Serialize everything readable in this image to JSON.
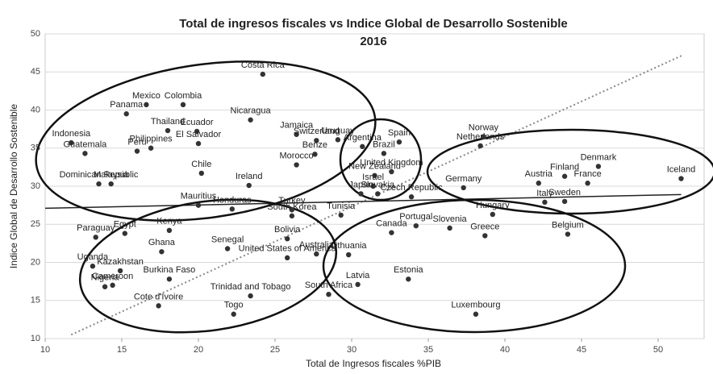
{
  "chart_data": {
    "type": "scatter",
    "title": "Total de ingresos fiscales vs Indice Global de Desarrollo Sostenible",
    "subtitle": "2016",
    "x_label": "Total de Ingresos fiscales %PIB",
    "y_label": "Indice Global de Desarrollo Sostenible",
    "xlim": [
      10,
      53
    ],
    "xticks": [
      10,
      15,
      20,
      25,
      30,
      35,
      40,
      45,
      50
    ],
    "ylim": [
      10,
      50
    ],
    "yticks": [
      10,
      15,
      20,
      25,
      30,
      35,
      40,
      45,
      50
    ],
    "grid": true,
    "color": "#333333",
    "series": [
      {
        "name": "Países",
        "labels": [
          "Costa Rica",
          "Mexico",
          "Colombia",
          "Panama",
          "Nicaragua",
          "Thailand",
          "Ecuador",
          "El Salvador",
          "Philippines",
          "Peru",
          "Indonesia",
          "Guatemala",
          "Dominican Republic",
          "Malaysia",
          "Chile",
          "Ireland",
          "Mauritius",
          "Honduras",
          "Jamaica",
          "Uruguay",
          "Switzerland",
          "Benze",
          "Morocco",
          "Argentina",
          "Spain",
          "Brazil",
          "United Kingdom",
          "New Zealand",
          "Israel",
          "Japan",
          "Slovakia",
          "Czech Republic",
          "Tunisia",
          "Turkey",
          "South Korea",
          "Bolivia",
          "United States of America",
          "Australia",
          "Lithuania",
          "South Africa",
          "Latvia",
          "Canada",
          "Portugal",
          "Estonia",
          "Slovenia",
          "Germany",
          "Netherlands",
          "Norway",
          "Hungary",
          "Greece",
          "Luxembourg",
          "Austria",
          "Italy",
          "Finland",
          "Sweden",
          "France",
          "Denmark",
          "Belgium",
          "Iceland",
          "Paraguay",
          "Egypt",
          "Kenya",
          "Ghana",
          "Senegal",
          "Uganda",
          "Kazakhstan",
          "Nigeria",
          "Cameroon",
          "Burkina Faso",
          "Cote d'Ivoire",
          "Trinidad and Tobago",
          "Togo"
        ],
        "x": [
          24.2,
          16.6,
          19.0,
          15.3,
          23.4,
          18.0,
          19.9,
          20.0,
          16.9,
          16.0,
          11.7,
          12.6,
          13.5,
          14.3,
          20.2,
          23.3,
          20.0,
          22.2,
          26.4,
          29.1,
          27.7,
          27.6,
          26.4,
          30.7,
          33.1,
          32.1,
          32.6,
          31.5,
          31.4,
          30.6,
          31.7,
          33.9,
          29.3,
          26.1,
          26.1,
          25.8,
          25.8,
          27.7,
          29.8,
          28.5,
          30.4,
          32.6,
          34.2,
          33.7,
          36.4,
          37.3,
          38.4,
          38.6,
          39.2,
          38.7,
          38.1,
          42.2,
          42.6,
          43.9,
          43.9,
          45.4,
          46.1,
          44.1,
          51.5,
          13.3,
          15.2,
          18.1,
          17.6,
          21.9,
          13.1,
          14.9,
          13.9,
          14.4,
          18.1,
          17.4,
          23.4,
          22.3
        ],
        "y": [
          44.7,
          40.7,
          40.7,
          39.5,
          38.7,
          37.3,
          37.2,
          35.6,
          35.0,
          34.6,
          35.7,
          34.3,
          30.3,
          30.3,
          31.7,
          30.1,
          27.5,
          27.0,
          36.8,
          36.1,
          36.0,
          34.2,
          32.8,
          35.2,
          35.8,
          34.3,
          31.9,
          31.4,
          30.0,
          29.0,
          29.0,
          28.6,
          26.2,
          26.9,
          26.1,
          23.1,
          20.6,
          21.1,
          21.0,
          15.8,
          17.1,
          23.9,
          24.8,
          17.8,
          24.5,
          29.8,
          35.3,
          36.5,
          26.3,
          23.5,
          13.2,
          30.4,
          27.9,
          31.3,
          28.0,
          30.4,
          32.6,
          23.7,
          31.0,
          23.3,
          23.8,
          24.2,
          21.4,
          21.8,
          19.5,
          18.9,
          16.8,
          17.0,
          17.8,
          14.3,
          15.6,
          13.2
        ]
      }
    ],
    "trendlines": [
      {
        "x": [
          11.7,
          51.6
        ],
        "y": [
          10.5,
          47.2
        ],
        "color": "#888888",
        "dash": true
      },
      {
        "x": [
          10,
          51.5
        ],
        "y": [
          27.1,
          28.9
        ],
        "color": "#222222",
        "dash": false
      }
    ]
  }
}
